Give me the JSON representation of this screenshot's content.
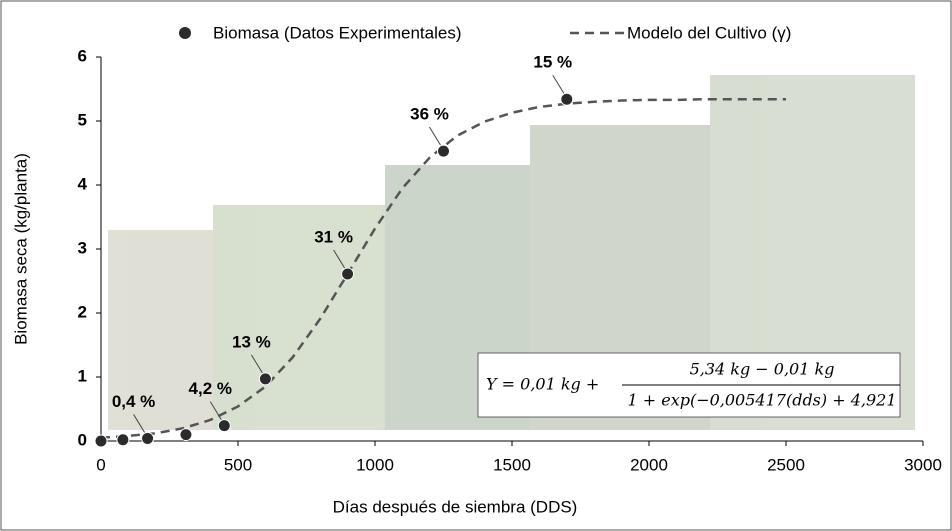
{
  "chart_data": {
    "type": "scatter",
    "x_label": "Días después de siembra (DDS)",
    "y_label": "Biomasa seca (kg/planta)",
    "xlim": [
      0,
      3000
    ],
    "ylim": [
      0,
      6
    ],
    "xticks": [
      0,
      500,
      1000,
      1500,
      2000,
      2500,
      3000
    ],
    "yticks": [
      0,
      1,
      2,
      3,
      4,
      5,
      6
    ],
    "series": [
      {
        "name": "Biomasa (Datos Experimentales)",
        "type": "scatter",
        "color": "#2b2b2b",
        "x": [
          0,
          80,
          170,
          310,
          450,
          600,
          900,
          1250,
          1700
        ],
        "values": [
          0,
          0.02,
          0.04,
          0.1,
          0.24,
          0.97,
          2.61,
          4.53,
          5.34
        ],
        "point_labels": [
          null,
          null,
          "0,4 %",
          null,
          "4,2 %",
          "13 %",
          "31 %",
          "36 %",
          "15 %"
        ]
      },
      {
        "name": "Modelo del Cultivo (γ)",
        "type": "line",
        "color": "#555555",
        "x": [
          0,
          100,
          200,
          300,
          400,
          500,
          600,
          700,
          800,
          900,
          1000,
          1100,
          1200,
          1300,
          1400,
          1500,
          1600,
          1700,
          1800,
          1900,
          2000,
          2100,
          2200,
          2300,
          2400,
          2500
        ],
        "values": [
          0.05,
          0.08,
          0.12,
          0.2,
          0.33,
          0.54,
          0.85,
          1.31,
          1.91,
          2.61,
          3.32,
          3.95,
          4.43,
          4.77,
          4.99,
          5.13,
          5.22,
          5.27,
          5.3,
          5.32,
          5.33,
          5.33,
          5.34,
          5.34,
          5.34,
          5.34
        ]
      }
    ],
    "equation": {
      "lhs": "Y = 0,01 kg +",
      "numerator": "5,34 kg − 0,01 kg",
      "denominator": "1 + exp(−0,005417(dds) + 4,921"
    }
  }
}
